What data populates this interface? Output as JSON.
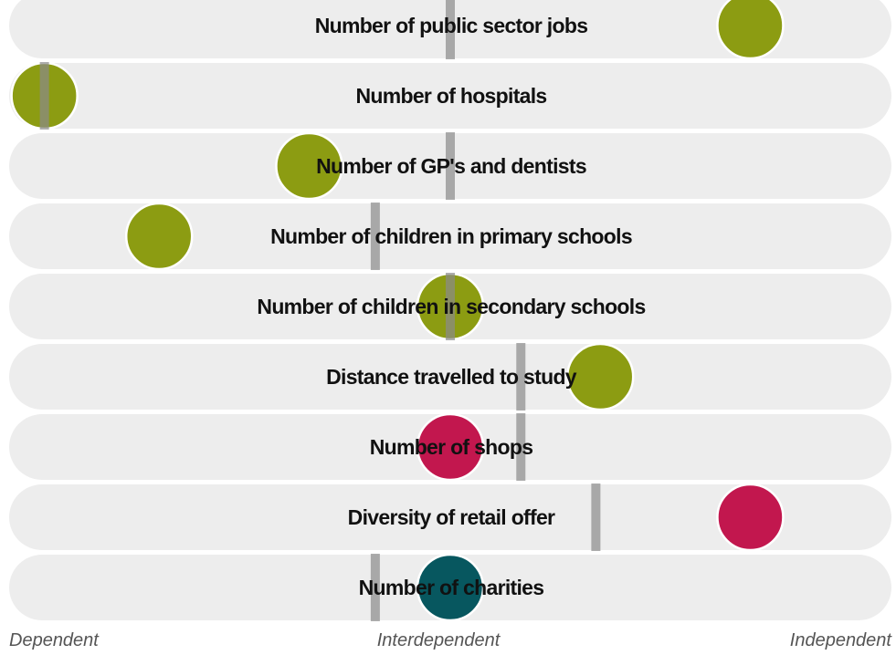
{
  "chart_data": {
    "type": "scatter",
    "x_range": [
      0,
      1
    ],
    "axis_labels": {
      "left": "Dependent",
      "center": "Interdependent",
      "right": "Independent"
    },
    "colors": {
      "row_background": "#ededed",
      "marker": "#a6a6a6",
      "green": "#8c9c12",
      "crimson": "#c2174e",
      "teal": "#07575f"
    },
    "rows": [
      {
        "label": "Number of public sector jobs",
        "value": 0.84,
        "marker": 0.5,
        "color": "green"
      },
      {
        "label": "Number of hospitals",
        "value": 0.04,
        "marker": 0.04,
        "color": "green"
      },
      {
        "label": "Number of GP's and dentists",
        "value": 0.34,
        "marker": 0.5,
        "color": "green"
      },
      {
        "label": "Number of children in primary schools",
        "value": 0.17,
        "marker": 0.415,
        "color": "green"
      },
      {
        "label": "Number of children in secondary schools",
        "value": 0.5,
        "marker": 0.5,
        "color": "green"
      },
      {
        "label": "Distance travelled to study",
        "value": 0.67,
        "marker": 0.58,
        "color": "green"
      },
      {
        "label": "Number of shops",
        "value": 0.5,
        "marker": 0.58,
        "color": "crimson"
      },
      {
        "label": "Diversity of retail offer",
        "value": 0.84,
        "marker": 0.665,
        "color": "crimson"
      },
      {
        "label": "Number of charities",
        "value": 0.5,
        "marker": 0.415,
        "color": "teal"
      }
    ]
  }
}
